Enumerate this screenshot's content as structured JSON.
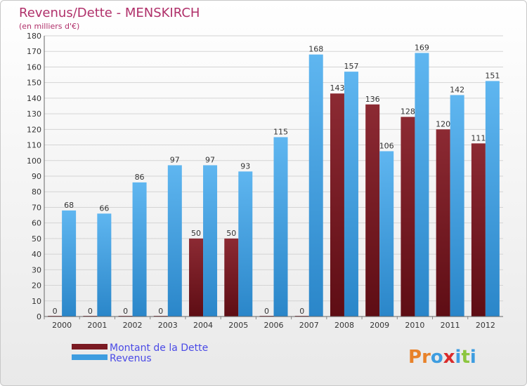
{
  "colors": {
    "debt_bar": "#7a1a22",
    "revenue_bar": "#3e9de0",
    "title": "#b0306a",
    "legend_text": "#4a4ae6"
  },
  "chart_data": {
    "type": "bar",
    "title": "Revenus/Dette - MENSKIRCH",
    "subtitle": "(en milliers d'€)",
    "categories": [
      "2000",
      "2001",
      "2002",
      "2003",
      "2004",
      "2005",
      "2006",
      "2007",
      "2008",
      "2009",
      "2010",
      "2011",
      "2012"
    ],
    "series": [
      {
        "name": "Montant de la Dette",
        "values": [
          0,
          0,
          0,
          0,
          50,
          50,
          0,
          0,
          143,
          136,
          128,
          120,
          111
        ]
      },
      {
        "name": "Revenus",
        "values": [
          68,
          66,
          86,
          97,
          97,
          93,
          115,
          168,
          157,
          106,
          169,
          142,
          151
        ]
      }
    ],
    "ylim": [
      0,
      180
    ],
    "ytick_step": 10,
    "grid": true,
    "legend_position": "bottom-left"
  },
  "logo": {
    "text": "Proxiti"
  }
}
